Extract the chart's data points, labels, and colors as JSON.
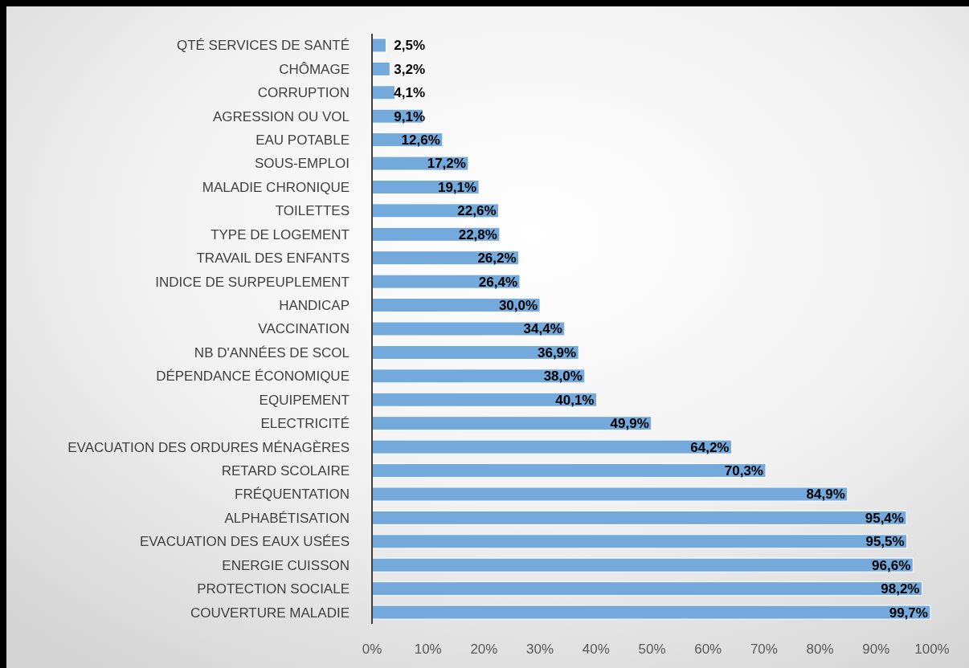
{
  "chart_data": {
    "type": "bar",
    "orientation": "horizontal",
    "categories": [
      "QTÉ SERVICES DE SANTÉ",
      "CHÔMAGE",
      "CORRUPTION",
      "AGRESSION OU VOL",
      "EAU POTABLE",
      "SOUS-EMPLOI",
      "MALADIE CHRONIQUE",
      "TOILETTES",
      "TYPE DE LOGEMENT",
      "TRAVAIL DES ENFANTS",
      "INDICE DE SURPEUPLEMENT",
      "HANDICAP",
      "VACCINATION",
      "NB D'ANNÉES DE SCOL",
      "DÉPENDANCE ÉCONOMIQUE",
      "EQUIPEMENT",
      "ELECTRICITÉ",
      "EVACUATION DES ORDURES MÉNAGÈRES",
      "RETARD SCOLAIRE",
      "FRÉQUENTATION",
      "ALPHABÉTISATION",
      "EVACUATION DES EAUX USÉES",
      "ENERGIE CUISSON",
      "PROTECTION SOCIALE",
      "COUVERTURE MALADIE"
    ],
    "values": [
      2.5,
      3.2,
      4.1,
      9.1,
      12.6,
      17.2,
      19.1,
      22.6,
      22.8,
      26.2,
      26.4,
      30.0,
      34.4,
      36.9,
      38.0,
      40.1,
      49.9,
      64.2,
      70.3,
      84.9,
      95.4,
      95.5,
      96.6,
      98.2,
      99.7
    ],
    "value_labels": [
      "2,5%",
      "3,2%",
      "4,1%",
      "9,1%",
      "12,6%",
      "17,2%",
      "19,1%",
      "22,6%",
      "22,8%",
      "26,2%",
      "26,4%",
      "30,0%",
      "34,4%",
      "36,9%",
      "38,0%",
      "40,1%",
      "49,9%",
      "64,2%",
      "70,3%",
      "84,9%",
      "95,4%",
      "95,5%",
      "96,6%",
      "98,2%",
      "99,7%"
    ],
    "color": "#74a9dc",
    "xlim": [
      0,
      100
    ],
    "xticks": [
      {
        "value": 0,
        "label": "0%"
      },
      {
        "value": 10,
        "label": "10%"
      },
      {
        "value": 20,
        "label": "20%"
      },
      {
        "value": 30,
        "label": "30%"
      },
      {
        "value": 40,
        "label": "40%"
      },
      {
        "value": 50,
        "label": "50%"
      },
      {
        "value": 60,
        "label": "60%"
      },
      {
        "value": 70,
        "label": "70%"
      },
      {
        "value": 80,
        "label": "80%"
      },
      {
        "value": 90,
        "label": "90%"
      },
      {
        "value": 100,
        "label": "100%"
      }
    ],
    "grid": false
  }
}
